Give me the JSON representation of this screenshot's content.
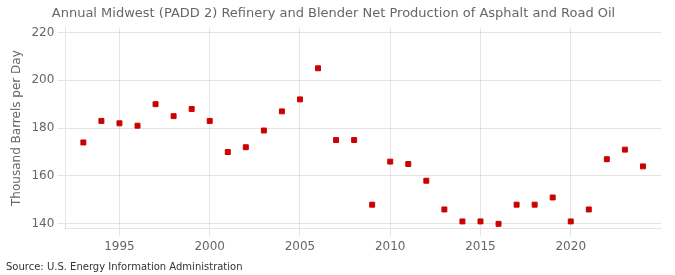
{
  "chart_data": {
    "type": "scatter",
    "title": "Annual Midwest (PADD 2) Refinery and Blender Net Production of Asphalt and Road Oil",
    "ylabel": "Thousand Barrels per Day",
    "annotations": [
      "Source: U.S. Energy Information Administration"
    ],
    "x": [
      1993,
      1994,
      1995,
      1996,
      1997,
      1998,
      1999,
      2000,
      2001,
      2002,
      2003,
      2004,
      2005,
      2006,
      2007,
      2008,
      2009,
      2010,
      2011,
      2012,
      2013,
      2014,
      2015,
      2016,
      2017,
      2018,
      2019,
      2020,
      2021,
      2022,
      2023,
      2024
    ],
    "values": [
      174,
      183,
      182,
      181,
      190,
      185,
      188,
      183,
      170,
      172,
      179,
      187,
      192,
      205,
      175,
      175,
      148,
      166,
      165,
      158,
      146,
      141,
      141,
      140,
      148,
      148,
      151,
      141,
      146,
      167,
      171,
      164
    ],
    "color": "#cc0000",
    "marker": "square",
    "xlim": [
      1992.0,
      2025.0
    ],
    "xticks": [
      1995,
      2000,
      2005,
      2010,
      2015,
      2020
    ],
    "ylim": [
      138,
      222
    ],
    "yticks": [
      140,
      160,
      180,
      200,
      220
    ],
    "grid": true
  }
}
